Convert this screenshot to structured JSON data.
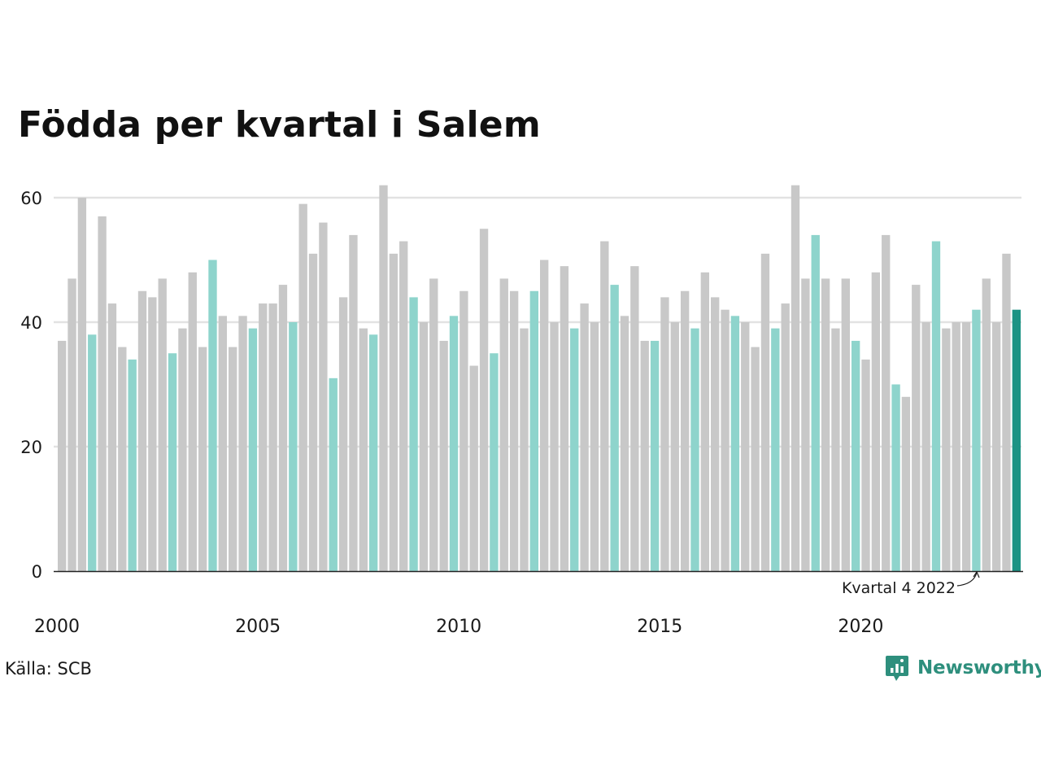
{
  "title": "Födda per kvartal i Salem",
  "source": "Källa: SCB",
  "brand": {
    "name": "Newsworthy",
    "logo_icon": "newsworthy-logo-icon"
  },
  "colors": {
    "grey_bar": "#c8c8c8",
    "q4_bar": "#8ed4cc",
    "latest_bar": "#1c9384",
    "grid": "#e2e2e2",
    "axis": "#222222",
    "brand": "#2e8f7d"
  },
  "chart_data": {
    "type": "bar",
    "x_start_year": 2000,
    "quarters_per_year": 4,
    "x_tick_labels": [
      "2000",
      "2005",
      "2010",
      "2015",
      "2020"
    ],
    "y_ticks": [
      0,
      20,
      40,
      60
    ],
    "ylim": [
      0,
      64
    ],
    "grid": true,
    "values": [
      37,
      47,
      60,
      38,
      57,
      43,
      36,
      34,
      45,
      44,
      47,
      35,
      39,
      48,
      36,
      50,
      41,
      36,
      41,
      39,
      43,
      43,
      46,
      40,
      59,
      51,
      56,
      31,
      44,
      54,
      39,
      38,
      62,
      51,
      53,
      44,
      40,
      47,
      37,
      41,
      45,
      33,
      55,
      35,
      47,
      45,
      39,
      45,
      50,
      40,
      49,
      39,
      43,
      40,
      53,
      46,
      41,
      49,
      37,
      37,
      44,
      40,
      45,
      39,
      48,
      44,
      42,
      41,
      40,
      36,
      51,
      39,
      43,
      62,
      47,
      54,
      47,
      39,
      47,
      37,
      34,
      48,
      54,
      30,
      28,
      46,
      40,
      53,
      39,
      40,
      40,
      42,
      47,
      40,
      51,
      42
    ],
    "highlight": "Q4 bars in teal; latest quarter in dark teal",
    "annotation": "Kvartal 4 2022"
  }
}
